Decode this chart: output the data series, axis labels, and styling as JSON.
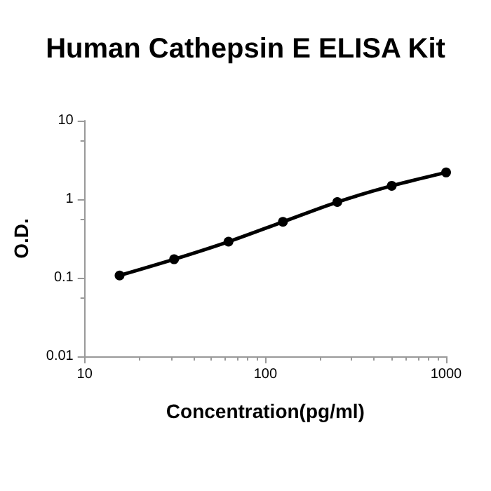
{
  "chart_data": {
    "type": "line",
    "title": "Human Cathepsin E ELISA Kit",
    "xlabel": "Concentration(pg/ml)",
    "ylabel": "O.D.",
    "x": [
      15.6,
      31.25,
      62.5,
      125,
      250,
      500,
      1000
    ],
    "series": [
      {
        "color": "#000000",
        "values": [
          0.107,
          0.172,
          0.288,
          0.515,
          0.92,
          1.48,
          2.19
        ]
      }
    ],
    "log": "xy",
    "xlim": [
      10,
      1000
    ],
    "xticks": [
      10,
      100,
      1000
    ],
    "ylim": [
      0.01,
      10
    ],
    "yticks": [
      0.01,
      0.1,
      1,
      10
    ],
    "grid": false,
    "marker": "circle",
    "line_style": "solid"
  }
}
